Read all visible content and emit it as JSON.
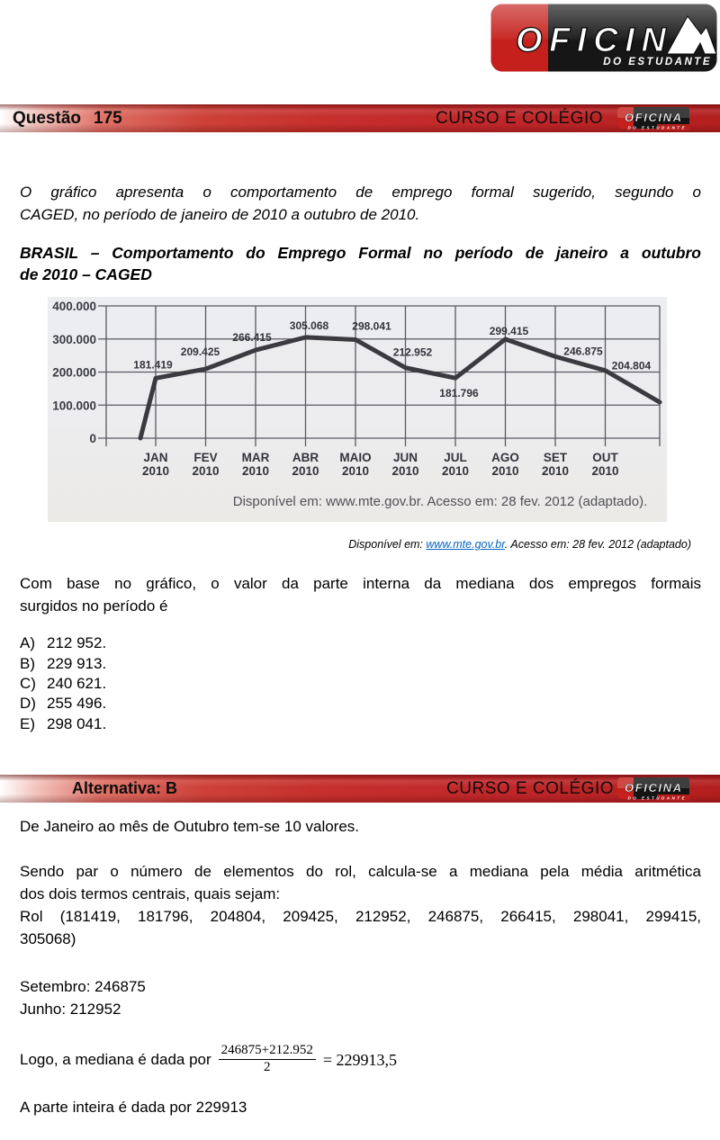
{
  "logo": {
    "name": "OFICINA",
    "tagline": "DO ESTUDANTE"
  },
  "header": {
    "question_label": "Questão",
    "question_number": "175",
    "right_text": "CURSO E COLÉGIO"
  },
  "intro": {
    "lines": [
      "O gráfico apresenta o comportamento de emprego formal sugerido, segundo o",
      "CAGED, no período de janeiro de 2010 a outubro de 2010."
    ]
  },
  "chart_title": {
    "lines": [
      "BRASIL – Comportamento do Emprego Formal no período de janeiro a outubro",
      "de 2010 – CAGED"
    ]
  },
  "chart_data": {
    "type": "line",
    "title": "BRASIL – Comportamento do Emprego Formal no período de janeiro a outubro de 2010 – CAGED",
    "months": [
      {
        "month": "JAN",
        "year": "2010"
      },
      {
        "month": "FEV",
        "year": "2010"
      },
      {
        "month": "MAR",
        "year": "2010"
      },
      {
        "month": "ABR",
        "year": "2010"
      },
      {
        "month": "MAIO",
        "year": "2010"
      },
      {
        "month": "JUN",
        "year": "2010"
      },
      {
        "month": "JUL",
        "year": "2010"
      },
      {
        "month": "AGO",
        "year": "2010"
      },
      {
        "month": "SET",
        "year": "2010"
      },
      {
        "month": "OUT",
        "year": "2010"
      }
    ],
    "values": [
      181419,
      209425,
      266415,
      305068,
      298041,
      212952,
      181796,
      299415,
      246875,
      204804
    ],
    "point_labels": [
      "181.419",
      "209.425",
      "266.415",
      "305.068",
      "298.041",
      "212.952",
      "181.796",
      "299.415",
      "246.875",
      "204.804"
    ],
    "y_ticks": [
      "400.000",
      "300.000",
      "200.000",
      "100.000",
      "0"
    ],
    "ylim": [
      0,
      400000
    ],
    "grid": "on",
    "caption": "Disponível em: www.mte.gov.br. Acesso em: 28 fev. 2012 (adaptado)."
  },
  "source": {
    "prefix": "Disponível em: ",
    "link": "www.mte.gov.br",
    "suffix": ". Acesso em: 28 fev. 2012 (adaptado)"
  },
  "question": {
    "lines": [
      "Com base no gráfico, o valor da parte interna da mediana dos empregos formais",
      "surgidos no período é"
    ],
    "options": [
      {
        "letter": "A)",
        "text": "212 952."
      },
      {
        "letter": "B)",
        "text": "229 913."
      },
      {
        "letter": "C)",
        "text": "240 621."
      },
      {
        "letter": "D)",
        "text": "255 496."
      },
      {
        "letter": "E)",
        "text": "298 041."
      }
    ]
  },
  "answer": {
    "label": "Alternativa: B",
    "right_text": "CURSO E COLÉGIO"
  },
  "solution": {
    "p1": "De Janeiro ao mês de Outubro tem-se 10 valores.",
    "p2_lines": [
      "Sendo par o número de elementos do rol, calcula-se a mediana pela média aritmética",
      "dos dois termos centrais, quais sejam:",
      "Rol (181419, 181796, 204804, 209425, 212952, 246875, 266415, 298041, 299415,",
      "305068)"
    ],
    "setembro": "Setembro: 246875",
    "junho": "Junho: 212952",
    "formula_prefix": "Logo, a mediana é dada por",
    "fraction_numerator": "246875+212.952",
    "fraction_denominator": "2",
    "formula_result": "= 229913,5",
    "final_line": "A parte inteira é dada por 229913"
  },
  "colors": {
    "bar_red": "#c1272d",
    "logo_red": "#c5201c",
    "logo_black": "#161616",
    "link_blue": "#0563c1",
    "chart_line": "#3a3a40",
    "scan_bg": "#ecedf0"
  }
}
